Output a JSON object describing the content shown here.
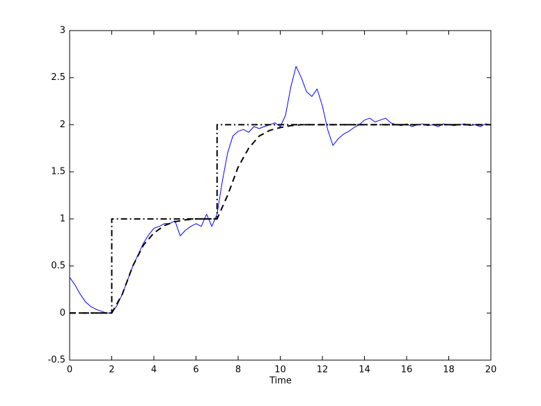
{
  "chart_data": {
    "type": "line",
    "xlabel": "Time",
    "xlim": [
      0,
      20
    ],
    "ylim": [
      -0.5,
      3
    ],
    "xticks": [
      0,
      2,
      4,
      6,
      8,
      10,
      12,
      14,
      16,
      18,
      20
    ],
    "yticks": [
      -0.5,
      0,
      0.5,
      1,
      1.5,
      2,
      2.5,
      3
    ],
    "grid": false,
    "box": true,
    "series": [
      {
        "color": "#0000ff",
        "style": "solid",
        "width": 1,
        "x": [
          0,
          0.25,
          0.5,
          0.75,
          1,
          1.25,
          1.5,
          1.75,
          2,
          2.25,
          2.5,
          2.75,
          3,
          3.25,
          3.5,
          3.75,
          4,
          4.25,
          4.5,
          4.75,
          5,
          5.25,
          5.5,
          5.75,
          6,
          6.25,
          6.5,
          6.75,
          7,
          7.25,
          7.5,
          7.75,
          8,
          8.25,
          8.5,
          8.75,
          9,
          9.25,
          9.5,
          9.75,
          10,
          10.25,
          10.5,
          10.75,
          11,
          11.25,
          11.5,
          11.75,
          12,
          12.25,
          12.5,
          12.75,
          13,
          13.25,
          13.5,
          13.75,
          14,
          14.25,
          14.5,
          14.75,
          15,
          15.25,
          15.5,
          15.75,
          16,
          16.25,
          16.5,
          16.75,
          17,
          17.25,
          17.5,
          17.75,
          18,
          18.25,
          18.5,
          18.75,
          19,
          19.25,
          19.5,
          19.75,
          20
        ],
        "values": [
          0.38,
          0.3,
          0.2,
          0.12,
          0.07,
          0.04,
          0.02,
          0,
          0,
          0.08,
          0.2,
          0.35,
          0.5,
          0.62,
          0.74,
          0.83,
          0.9,
          0.92,
          0.95,
          0.95,
          0.98,
          0.82,
          0.88,
          0.92,
          0.95,
          0.92,
          1.05,
          0.92,
          1.05,
          1.4,
          1.7,
          1.88,
          1.93,
          1.95,
          1.92,
          1.98,
          1.96,
          1.98,
          2,
          2.02,
          1.98,
          2.1,
          2.4,
          2.62,
          2.5,
          2.35,
          2.3,
          2.38,
          2.2,
          1.95,
          1.78,
          1.85,
          1.9,
          1.93,
          1.97,
          2,
          2.05,
          2.07,
          2.03,
          2.05,
          2.07,
          2.02,
          2,
          1.99,
          2.01,
          1.98,
          2,
          2.01,
          1.99,
          2,
          1.98,
          2.01,
          2,
          1.99,
          2,
          2.01,
          1.99,
          2,
          1.98,
          2.01,
          2
        ]
      },
      {
        "color": "#000000",
        "style": "dashdot",
        "width": 2,
        "x": [
          0,
          2,
          2,
          7,
          7,
          20
        ],
        "values": [
          0,
          0,
          1,
          1,
          2,
          2
        ]
      },
      {
        "color": "#000000",
        "style": "dashed",
        "width": 2,
        "x": [
          0,
          0.5,
          1,
          1.5,
          2,
          2.5,
          3,
          3.5,
          4,
          4.5,
          5,
          5.5,
          6,
          6.5,
          7,
          7.5,
          8,
          8.5,
          9,
          9.5,
          10,
          10.5,
          11,
          11.5,
          12,
          12.5,
          13,
          13.5,
          14,
          14.5,
          15,
          15.5,
          16,
          16.5,
          17,
          17.5,
          18,
          18.5,
          19,
          19.5,
          20
        ],
        "values": [
          0,
          0,
          0,
          0,
          0,
          0.2,
          0.5,
          0.72,
          0.85,
          0.93,
          0.97,
          0.99,
          1,
          1,
          1,
          1.25,
          1.55,
          1.75,
          1.88,
          1.94,
          1.97,
          1.99,
          2,
          2,
          2,
          2,
          2,
          2,
          2,
          2,
          2,
          2,
          2,
          2,
          2,
          2,
          2,
          2,
          2,
          2,
          2
        ]
      }
    ]
  }
}
